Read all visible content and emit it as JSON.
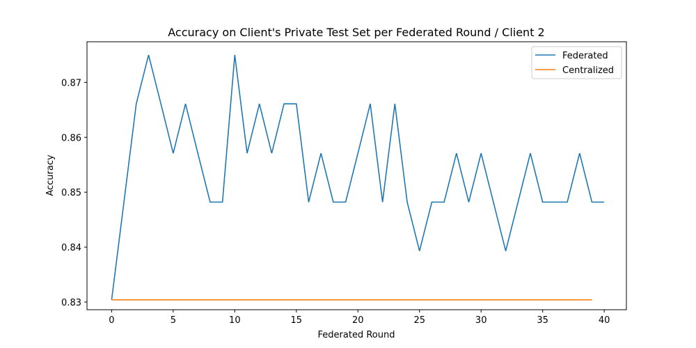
{
  "chart_data": {
    "type": "line",
    "title": "Accuracy on Client's Private Test Set per Federated Round / Client 2",
    "xlabel": "Federated Round",
    "ylabel": "Accuracy",
    "xlim": [
      -2,
      41.8
    ],
    "ylim": [
      0.8286,
      0.8774
    ],
    "xticks": [
      0,
      5,
      10,
      15,
      20,
      25,
      30,
      35,
      40
    ],
    "yticks": [
      0.83,
      0.84,
      0.85,
      0.86,
      0.87
    ],
    "xtick_labels": [
      "0",
      "5",
      "10",
      "15",
      "20",
      "25",
      "30",
      "35",
      "40"
    ],
    "ytick_labels": [
      "0.83",
      "0.84",
      "0.85",
      "0.86",
      "0.87"
    ],
    "grid": false,
    "legend_position": "top-right",
    "series": [
      {
        "name": "Federated",
        "color": "#1f77b4",
        "x": [
          0,
          1,
          2,
          3,
          4,
          5,
          6,
          7,
          8,
          9,
          10,
          11,
          12,
          13,
          14,
          15,
          16,
          17,
          18,
          19,
          20,
          21,
          22,
          23,
          24,
          25,
          26,
          27,
          28,
          29,
          30,
          31,
          32,
          33,
          34,
          35,
          36,
          37,
          38,
          39,
          40
        ],
        "y": [
          0.8304,
          0.8482,
          0.8661,
          0.875,
          0.8661,
          0.8571,
          0.8661,
          0.8571,
          0.8482,
          0.8482,
          0.875,
          0.8571,
          0.8661,
          0.8571,
          0.8661,
          0.8661,
          0.8482,
          0.8571,
          0.8482,
          0.8482,
          0.8571,
          0.8661,
          0.8482,
          0.8661,
          0.8482,
          0.8393,
          0.8482,
          0.8482,
          0.8571,
          0.8482,
          0.8571,
          0.8482,
          0.8393,
          0.8482,
          0.8571,
          0.8482,
          0.8482,
          0.8482,
          0.8571,
          0.8482,
          0.8482
        ]
      },
      {
        "name": "Centralized",
        "color": "#ff7f0e",
        "x": [
          0,
          39
        ],
        "y": [
          0.8304,
          0.8304
        ]
      }
    ]
  }
}
